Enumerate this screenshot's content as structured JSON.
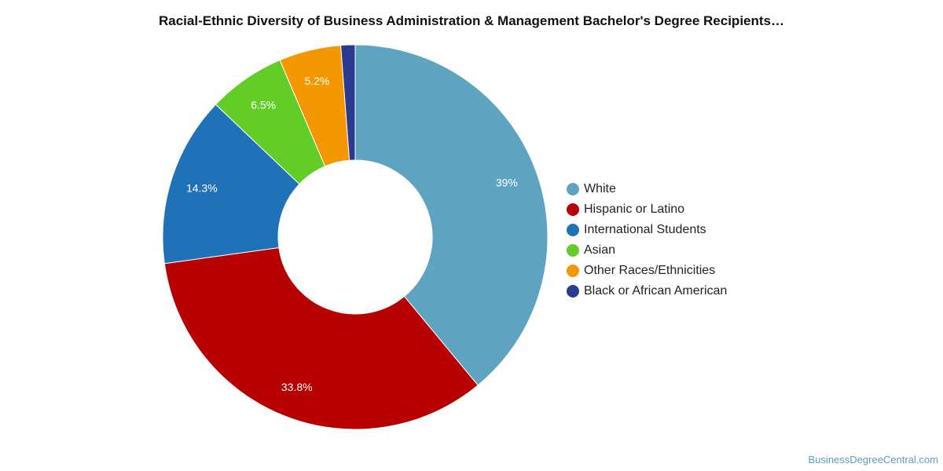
{
  "chart_data": {
    "type": "pie",
    "title": "Racial-Ethnic Diversity of Business Administration & Management Bachelor's Degree Recipients…",
    "donut": true,
    "legend_position": "right",
    "slices": [
      {
        "name": "White",
        "value": 39.0,
        "label": "39%",
        "color": "#5ea3c0"
      },
      {
        "name": "Hispanic or Latino",
        "value": 33.8,
        "label": "33.8%",
        "color": "#b70000"
      },
      {
        "name": "International Students",
        "value": 14.3,
        "label": "14.3%",
        "color": "#1f72b8"
      },
      {
        "name": "Asian",
        "value": 6.5,
        "label": "6.5%",
        "color": "#63cd28"
      },
      {
        "name": "Other Races/Ethnicities",
        "value": 5.2,
        "label": "5.2%",
        "color": "#f59700"
      },
      {
        "name": "Black or African American",
        "value": 1.2,
        "label": "",
        "color": "#2b3a8f"
      }
    ]
  },
  "watermark": "BusinessDegreeCentral.com"
}
